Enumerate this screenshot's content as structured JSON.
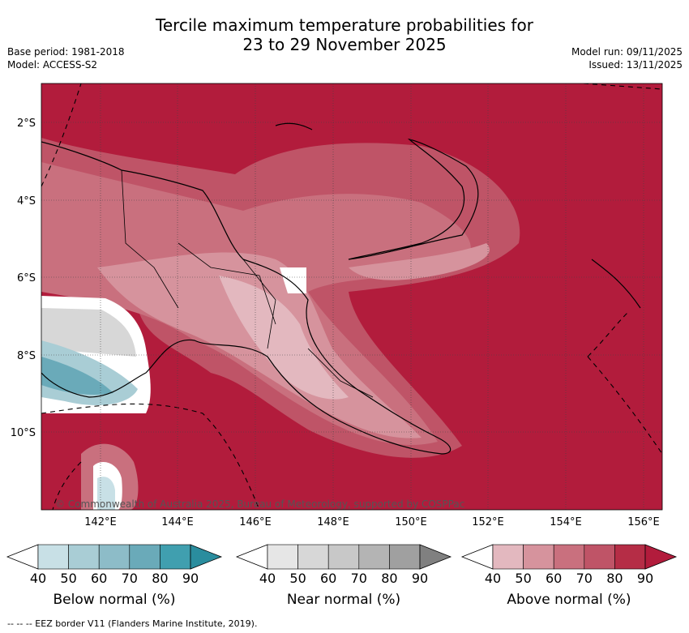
{
  "title_line1": "Tercile maximum temperature probabilities for",
  "title_line2": "23 to 29 November 2025",
  "base_period": "Base period: 1981-2018",
  "model": "Model: ACCESS-S2",
  "model_run": "Model run: 09/11/2025",
  "issued": "Issued: 13/11/2025",
  "copyright": "© Commonwealth of Australia 2025, Bureau of Meteorology, supported by COSPPac",
  "lat_labels": [
    "2°S",
    "4°S",
    "6°S",
    "8°S",
    "10°S"
  ],
  "lon_labels": [
    "142°E",
    "144°E",
    "146°E",
    "148°E",
    "150°E",
    "152°E",
    "154°E",
    "156°E"
  ],
  "legends": [
    {
      "title": "Below normal (%)",
      "ticks": [
        "40",
        "50",
        "60",
        "70",
        "80",
        "90"
      ],
      "colors": [
        "#ffffff",
        "#c8e0e6",
        "#a9cdd5",
        "#8dbcc8",
        "#6aaab9",
        "#409faf",
        "#2a8d9e"
      ]
    },
    {
      "title": "Near normal (%)",
      "ticks": [
        "40",
        "50",
        "60",
        "70",
        "80",
        "90"
      ],
      "colors": [
        "#ffffff",
        "#e6e6e6",
        "#d7d7d7",
        "#c8c8c8",
        "#b4b4b4",
        "#a0a0a0",
        "#808080"
      ]
    },
    {
      "title": "Above normal (%)",
      "ticks": [
        "40",
        "50",
        "60",
        "70",
        "80",
        "90"
      ],
      "colors": [
        "#ffffff",
        "#e3b8bf",
        "#d6939d",
        "#c9707e",
        "#bf5467",
        "#b52d46",
        "#b21c3c"
      ]
    }
  ],
  "footnote": "--  --  -- EEZ border V11 (Flanders Marine Institute, 2019)."
}
